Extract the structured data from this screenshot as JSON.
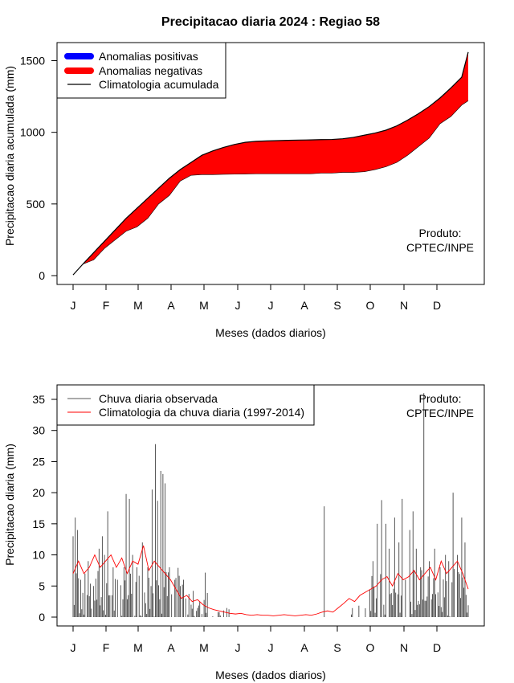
{
  "chart_data": [
    {
      "type": "area",
      "title": "Precipitacao diaria 2024 : Regiao 58",
      "xlabel": "Meses (dados diarios)",
      "ylabel": "Precipitacao diaria acumulada (mm)",
      "x_ticks": [
        "J",
        "F",
        "M",
        "A",
        "M",
        "J",
        "J",
        "A",
        "S",
        "O",
        "N",
        "D"
      ],
      "y_ticks": [
        0,
        500,
        1000,
        1500
      ],
      "xlim": [
        1,
        366
      ],
      "ylim": [
        -30,
        1610
      ],
      "legend_position": "top-left",
      "legend": [
        {
          "label": "Anomalias positivas",
          "color": "#0000ff"
        },
        {
          "label": "Anomalias negativas",
          "color": "#ff0000"
        },
        {
          "label": "Climatologia acumulada",
          "color": "#000000"
        }
      ],
      "annotation": [
        "Produto:",
        "CPTEC/INPE"
      ],
      "series": [
        {
          "name": "Climatologia acumulada",
          "points": [
            [
              1,
              5
            ],
            [
              10,
              80
            ],
            [
              20,
              160
            ],
            [
              30,
              240
            ],
            [
              40,
              320
            ],
            [
              50,
              400
            ],
            [
              60,
              470
            ],
            [
              70,
              540
            ],
            [
              80,
              610
            ],
            [
              90,
              680
            ],
            [
              100,
              740
            ],
            [
              110,
              790
            ],
            [
              120,
              840
            ],
            [
              130,
              870
            ],
            [
              140,
              895
            ],
            [
              150,
              915
            ],
            [
              160,
              930
            ],
            [
              170,
              937
            ],
            [
              180,
              940
            ],
            [
              190,
              942
            ],
            [
              200,
              944
            ],
            [
              210,
              946
            ],
            [
              220,
              947
            ],
            [
              230,
              949
            ],
            [
              240,
              950
            ],
            [
              250,
              955
            ],
            [
              260,
              965
            ],
            [
              270,
              980
            ],
            [
              280,
              995
            ],
            [
              290,
              1015
            ],
            [
              300,
              1045
            ],
            [
              310,
              1085
            ],
            [
              320,
              1130
            ],
            [
              330,
              1180
            ],
            [
              340,
              1240
            ],
            [
              350,
              1310
            ],
            [
              360,
              1385
            ],
            [
              366,
              1560
            ]
          ]
        },
        {
          "name": "Observada acumulada",
          "points": [
            [
              1,
              5
            ],
            [
              10,
              80
            ],
            [
              20,
              110
            ],
            [
              30,
              190
            ],
            [
              40,
              250
            ],
            [
              50,
              310
            ],
            [
              60,
              340
            ],
            [
              70,
              400
            ],
            [
              80,
              500
            ],
            [
              90,
              560
            ],
            [
              100,
              660
            ],
            [
              110,
              700
            ],
            [
              120,
              705
            ],
            [
              130,
              705
            ],
            [
              140,
              707
            ],
            [
              150,
              708
            ],
            [
              160,
              709
            ],
            [
              170,
              710
            ],
            [
              180,
              710
            ],
            [
              190,
              710
            ],
            [
              200,
              710
            ],
            [
              210,
              710
            ],
            [
              220,
              710
            ],
            [
              230,
              715
            ],
            [
              240,
              715
            ],
            [
              250,
              720
            ],
            [
              260,
              720
            ],
            [
              270,
              725
            ],
            [
              280,
              740
            ],
            [
              290,
              760
            ],
            [
              300,
              790
            ],
            [
              310,
              840
            ],
            [
              320,
              900
            ],
            [
              330,
              960
            ],
            [
              340,
              1060
            ],
            [
              350,
              1110
            ],
            [
              360,
              1190
            ],
            [
              366,
              1220
            ]
          ]
        }
      ]
    },
    {
      "type": "line",
      "title": "",
      "xlabel": "Meses (dados diarios)",
      "ylabel": "Precipitacao diaria (mm)",
      "x_ticks": [
        "J",
        "F",
        "M",
        "A",
        "M",
        "J",
        "J",
        "A",
        "S",
        "O",
        "N",
        "D"
      ],
      "y_ticks": [
        0,
        5,
        10,
        15,
        20,
        25,
        30,
        35
      ],
      "xlim": [
        1,
        366
      ],
      "ylim": [
        -1.3,
        37.6
      ],
      "legend_position": "top-left",
      "legend": [
        {
          "label": "Chuva diaria observada",
          "color": "#555555"
        },
        {
          "label": "Climatologia da chuva diaria (1997-2014)",
          "color": "#ff0000"
        }
      ],
      "annotation": [
        "Produto:",
        "CPTEC/INPE"
      ],
      "series": [
        {
          "name": "Chuva diaria observada",
          "peaks": [
            [
              1,
              13
            ],
            [
              3,
              16
            ],
            [
              5,
              14
            ],
            [
              8,
              6
            ],
            [
              12,
              7
            ],
            [
              15,
              9
            ],
            [
              20,
              5
            ],
            [
              25,
              11
            ],
            [
              28,
              13
            ],
            [
              30,
              10
            ],
            [
              33,
              17
            ],
            [
              38,
              8
            ],
            [
              42,
              6
            ],
            [
              48,
              8
            ],
            [
              50,
              19.8
            ],
            [
              53,
              19
            ],
            [
              56,
              10
            ],
            [
              60,
              8
            ],
            [
              65,
              12
            ],
            [
              70,
              8
            ],
            [
              74,
              20.5
            ],
            [
              77,
              27.8
            ],
            [
              79,
              18.7
            ],
            [
              82,
              23.5
            ],
            [
              84,
              23
            ],
            [
              86,
              21.5
            ],
            [
              90,
              8
            ],
            [
              95,
              6
            ],
            [
              100,
              5
            ],
            [
              105,
              3
            ],
            [
              110,
              2
            ],
            [
              115,
              1
            ],
            [
              120,
              0.5
            ],
            [
              233,
              17.8
            ],
            [
              278,
              9
            ],
            [
              282,
              15
            ],
            [
              286,
              18.8
            ],
            [
              290,
              15
            ],
            [
              293,
              11
            ],
            [
              298,
              16
            ],
            [
              302,
              12
            ],
            [
              305,
              19
            ],
            [
              308,
              6
            ],
            [
              312,
              14
            ],
            [
              315,
              17
            ],
            [
              318,
              11
            ],
            [
              322,
              8
            ],
            [
              325,
              36
            ],
            [
              330,
              9
            ],
            [
              335,
              11
            ],
            [
              340,
              8
            ],
            [
              345,
              10
            ],
            [
              348,
              9
            ],
            [
              352,
              20
            ],
            [
              356,
              10
            ],
            [
              360,
              16
            ],
            [
              363,
              12
            ]
          ]
        },
        {
          "name": "Climatologia da chuva diaria (1997-2014)",
          "points": [
            [
              1,
              7
            ],
            [
              6,
              9
            ],
            [
              11,
              7
            ],
            [
              16,
              8
            ],
            [
              21,
              10
            ],
            [
              26,
              8
            ],
            [
              31,
              9
            ],
            [
              36,
              10
            ],
            [
              41,
              8
            ],
            [
              46,
              9.5
            ],
            [
              51,
              7
            ],
            [
              56,
              9
            ],
            [
              61,
              8.5
            ],
            [
              66,
              11.5
            ],
            [
              71,
              7.5
            ],
            [
              76,
              9
            ],
            [
              81,
              8
            ],
            [
              86,
              7
            ],
            [
              91,
              6
            ],
            [
              96,
              4.5
            ],
            [
              101,
              3
            ],
            [
              106,
              3.5
            ],
            [
              111,
              2.5
            ],
            [
              116,
              2.8
            ],
            [
              121,
              2
            ],
            [
              126,
              1.5
            ],
            [
              131,
              1.2
            ],
            [
              136,
              1
            ],
            [
              141,
              0.8
            ],
            [
              146,
              0.6
            ],
            [
              151,
              0.5
            ],
            [
              156,
              0.6
            ],
            [
              161,
              0.4
            ],
            [
              166,
              0.3
            ],
            [
              171,
              0.4
            ],
            [
              176,
              0.3
            ],
            [
              181,
              0.3
            ],
            [
              186,
              0.2
            ],
            [
              191,
              0.3
            ],
            [
              196,
              0.4
            ],
            [
              201,
              0.3
            ],
            [
              206,
              0.2
            ],
            [
              211,
              0.3
            ],
            [
              216,
              0.4
            ],
            [
              221,
              0.3
            ],
            [
              226,
              0.5
            ],
            [
              231,
              0.8
            ],
            [
              236,
              1
            ],
            [
              241,
              0.8
            ],
            [
              246,
              1.5
            ],
            [
              251,
              2.2
            ],
            [
              256,
              3
            ],
            [
              261,
              2.5
            ],
            [
              266,
              3.5
            ],
            [
              271,
              4
            ],
            [
              276,
              4.5
            ],
            [
              281,
              5
            ],
            [
              286,
              6
            ],
            [
              291,
              6.5
            ],
            [
              296,
              5
            ],
            [
              301,
              7
            ],
            [
              306,
              6
            ],
            [
              311,
              6.5
            ],
            [
              316,
              7.5
            ],
            [
              321,
              6
            ],
            [
              326,
              7
            ],
            [
              331,
              8
            ],
            [
              336,
              6
            ],
            [
              341,
              9
            ],
            [
              346,
              7
            ],
            [
              351,
              8
            ],
            [
              356,
              9
            ],
            [
              361,
              7
            ],
            [
              366,
              4.5
            ]
          ]
        }
      ]
    }
  ]
}
